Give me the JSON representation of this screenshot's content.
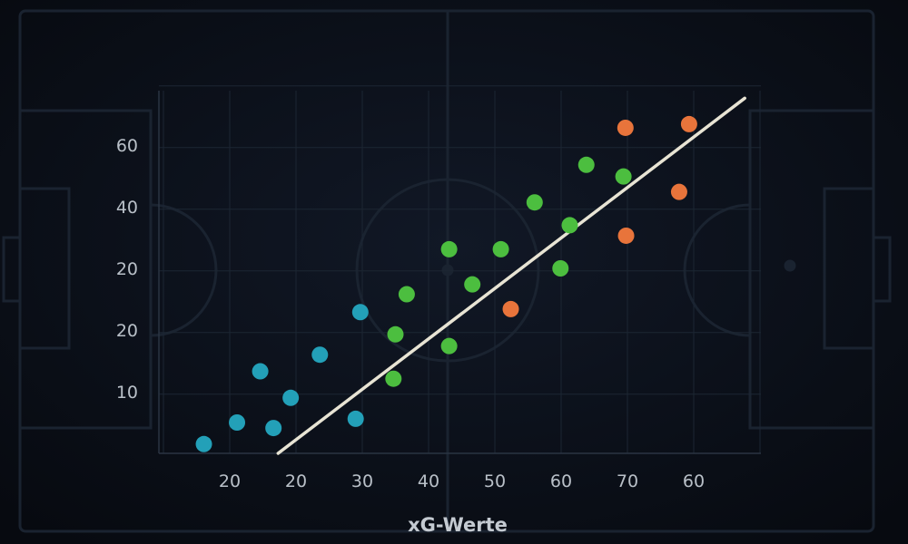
{
  "chart_data": {
    "type": "scatter",
    "title": "",
    "xlabel": "xG-Werte",
    "ylabel": "",
    "grid": true,
    "legend": "none",
    "x_tick_labels": [
      "20",
      "20",
      "30",
      "40",
      "50",
      "60",
      "70",
      "60"
    ],
    "y_tick_labels": [
      "10",
      "20",
      "20",
      "40",
      "60"
    ],
    "x_axis_range": [
      0,
      9
    ],
    "y_axis_range": [
      0,
      5.9
    ],
    "groups": [
      {
        "color": "#23a0b8",
        "points": [
          {
            "x": 0.61,
            "y": 0.15
          },
          {
            "x": 1.11,
            "y": 0.5
          },
          {
            "x": 1.46,
            "y": 1.33
          },
          {
            "x": 1.66,
            "y": 0.41
          },
          {
            "x": 1.92,
            "y": 0.9
          },
          {
            "x": 2.36,
            "y": 1.6
          },
          {
            "x": 2.9,
            "y": 0.56
          },
          {
            "x": 2.97,
            "y": 2.29
          }
        ]
      },
      {
        "color": "#4cbe3f",
        "points": [
          {
            "x": 3.47,
            "y": 1.21
          },
          {
            "x": 3.5,
            "y": 1.93
          },
          {
            "x": 3.67,
            "y": 2.58
          },
          {
            "x": 4.31,
            "y": 1.74
          },
          {
            "x": 4.31,
            "y": 3.31
          },
          {
            "x": 4.66,
            "y": 2.74
          },
          {
            "x": 5.09,
            "y": 3.31
          },
          {
            "x": 5.6,
            "y": 4.07
          },
          {
            "x": 5.99,
            "y": 3.0
          },
          {
            "x": 6.13,
            "y": 3.7
          },
          {
            "x": 6.38,
            "y": 4.68
          },
          {
            "x": 6.94,
            "y": 4.49
          }
        ]
      },
      {
        "color": "#e8743b",
        "points": [
          {
            "x": 5.24,
            "y": 2.34
          },
          {
            "x": 6.98,
            "y": 3.53
          },
          {
            "x": 6.97,
            "y": 5.28
          },
          {
            "x": 7.78,
            "y": 4.24
          },
          {
            "x": 7.93,
            "y": 5.34
          }
        ]
      }
    ],
    "trend_line": {
      "color": "#e8e4d4",
      "x1": 1.73,
      "y1": 0.0,
      "x2": 8.77,
      "y2": 5.76
    }
  }
}
